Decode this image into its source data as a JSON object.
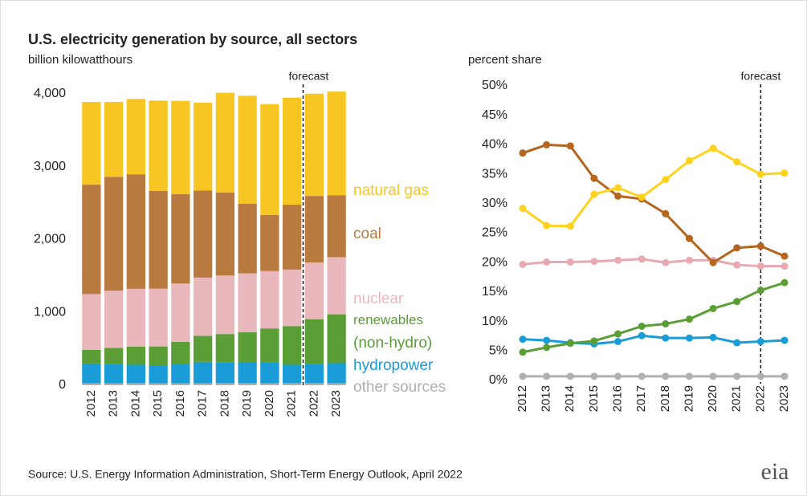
{
  "title": "U.S. electricity generation by source, all sectors",
  "source": "Source: U.S. Energy Information Administration, Short-Term Energy Outlook, April 2022",
  "logo": "eia",
  "chart_data": [
    {
      "type": "stacked_bar",
      "y_label": "billion kilowatthours",
      "annotation": "forecast",
      "forecast_start": "2022",
      "categories": [
        "2012",
        "2013",
        "2014",
        "2015",
        "2016",
        "2017",
        "2018",
        "2019",
        "2020",
        "2021",
        "2022",
        "2023"
      ],
      "ylim": [
        0,
        4000
      ],
      "yticks": [
        0,
        {
          "value": 1000,
          "label": "1,000"
        },
        {
          "value": 2000,
          "label": "2,000"
        },
        {
          "value": 3000,
          "label": "3,000"
        },
        {
          "value": 4000,
          "label": "4,000"
        }
      ],
      "series": [
        {
          "name": "other sources",
          "color": "#b0b0b0",
          "values": [
            27,
            27,
            28,
            27,
            27,
            27,
            28,
            28,
            27,
            28,
            28,
            28
          ]
        },
        {
          "name": "hydropower",
          "color": "#1a9cd8",
          "values": [
            272,
            266,
            253,
            243,
            259,
            295,
            289,
            286,
            282,
            253,
            265,
            275
          ]
        },
        {
          "name": "renewables (non-hydro)",
          "color": "#5a9e35",
          "values": [
            187,
            219,
            249,
            263,
            310,
            357,
            386,
            413,
            471,
            531,
            614,
            671
          ]
        },
        {
          "name": "nuclear",
          "color": "#e9b8bd",
          "values": [
            766,
            786,
            794,
            792,
            800,
            799,
            804,
            810,
            787,
            776,
            778,
            784
          ]
        },
        {
          "name": "coal",
          "color": "#b97a3f",
          "values": [
            1502,
            1564,
            1572,
            1345,
            1227,
            1195,
            1138,
            957,
            772,
            891,
            914,
            852
          ]
        },
        {
          "name": "natural gas",
          "color": "#f7c623",
          "values": [
            1136,
            1028,
            1035,
            1239,
            1282,
            1207,
            1371,
            1481,
            1521,
            1469,
            1404,
            1422
          ]
        }
      ]
    },
    {
      "type": "line",
      "y_label": "percent share",
      "annotation": "forecast",
      "forecast_start": "2022",
      "categories": [
        "2012",
        "2013",
        "2014",
        "2015",
        "2016",
        "2017",
        "2018",
        "2019",
        "2020",
        "2021",
        "2022",
        "2023"
      ],
      "ylim": [
        0,
        50
      ],
      "yticks": [
        {
          "value": 0,
          "label": "0%"
        },
        {
          "value": 5,
          "label": "5%"
        },
        {
          "value": 10,
          "label": "10%"
        },
        {
          "value": 15,
          "label": "15%"
        },
        {
          "value": 20,
          "label": "20%"
        },
        {
          "value": 25,
          "label": "25%"
        },
        {
          "value": 30,
          "label": "30%"
        },
        {
          "value": 35,
          "label": "35%"
        },
        {
          "value": 40,
          "label": "40%"
        },
        {
          "value": 45,
          "label": "45%"
        },
        {
          "value": 50,
          "label": "50%"
        }
      ],
      "series": [
        {
          "name": "other sources",
          "color": "#b0b0b0",
          "values": [
            0.7,
            0.7,
            0.7,
            0.7,
            0.7,
            0.7,
            0.7,
            0.7,
            0.7,
            0.7,
            0.7,
            0.7
          ]
        },
        {
          "name": "hydropower",
          "color": "#1a9cd8",
          "values": [
            7.0,
            6.8,
            6.4,
            6.2,
            6.6,
            7.6,
            7.2,
            7.2,
            7.3,
            6.4,
            6.6,
            6.8
          ]
        },
        {
          "name": "renewables (non-hydro)",
          "color": "#5a9e35",
          "values": [
            4.8,
            5.6,
            6.3,
            6.7,
            7.9,
            9.2,
            9.6,
            10.4,
            12.2,
            13.4,
            15.3,
            16.6
          ]
        },
        {
          "name": "nuclear",
          "color": "#e9a9b0",
          "values": [
            19.7,
            20.1,
            20.1,
            20.2,
            20.4,
            20.6,
            20.0,
            20.4,
            20.4,
            19.6,
            19.4,
            19.4
          ]
        },
        {
          "name": "coal",
          "color": "#b5651d",
          "values": [
            38.6,
            40.0,
            39.8,
            34.3,
            31.3,
            30.8,
            28.3,
            24.1,
            20.0,
            22.5,
            22.8,
            21.1
          ]
        },
        {
          "name": "natural gas",
          "color": "#ffd21e",
          "values": [
            29.2,
            26.3,
            26.2,
            31.6,
            32.7,
            31.1,
            34.1,
            37.3,
            39.4,
            37.1,
            35.0,
            35.2
          ]
        }
      ]
    }
  ]
}
